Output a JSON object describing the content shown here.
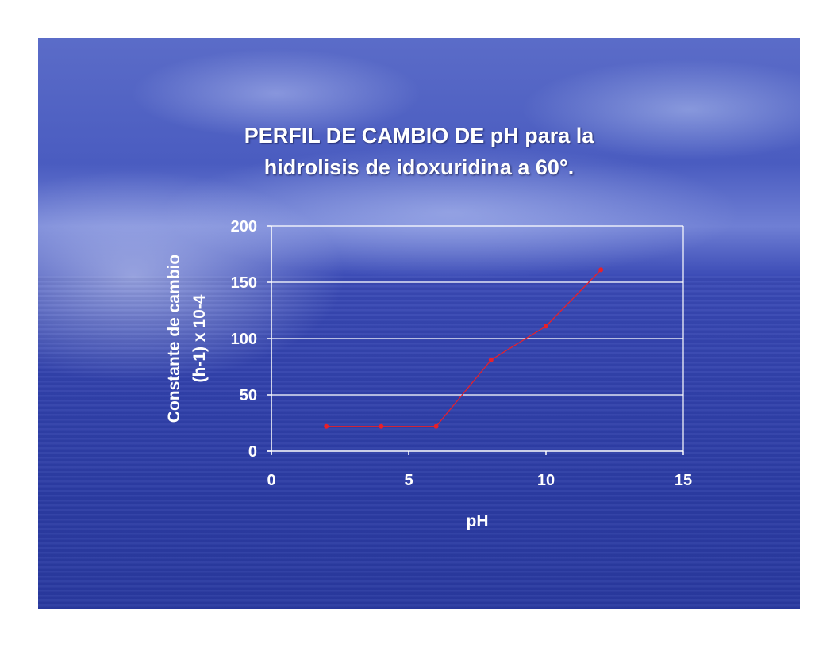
{
  "slide": {
    "title_line1": "PERFIL DE CAMBIO DE pH para la",
    "title_line2": "hidrolisis de idoxuridina a 60°."
  },
  "chart_data": {
    "type": "line",
    "title": "PERFIL DE CAMBIO DE pH para la hidrolisis de idoxuridina a 60°.",
    "xlabel": "pH",
    "ylabel_lines": [
      "Constante de cambio",
      "(h-1) x 10-4"
    ],
    "xlim": [
      0,
      15
    ],
    "ylim": [
      0,
      200
    ],
    "x_ticks": [
      0,
      5,
      10,
      15
    ],
    "y_ticks": [
      0,
      50,
      100,
      150,
      200
    ],
    "grid": "horizontal",
    "series": [
      {
        "color": "#e8202a",
        "x": [
          2,
          4,
          6,
          8,
          10,
          12
        ],
        "y": [
          22,
          22,
          22,
          81,
          111,
          161
        ]
      }
    ]
  }
}
